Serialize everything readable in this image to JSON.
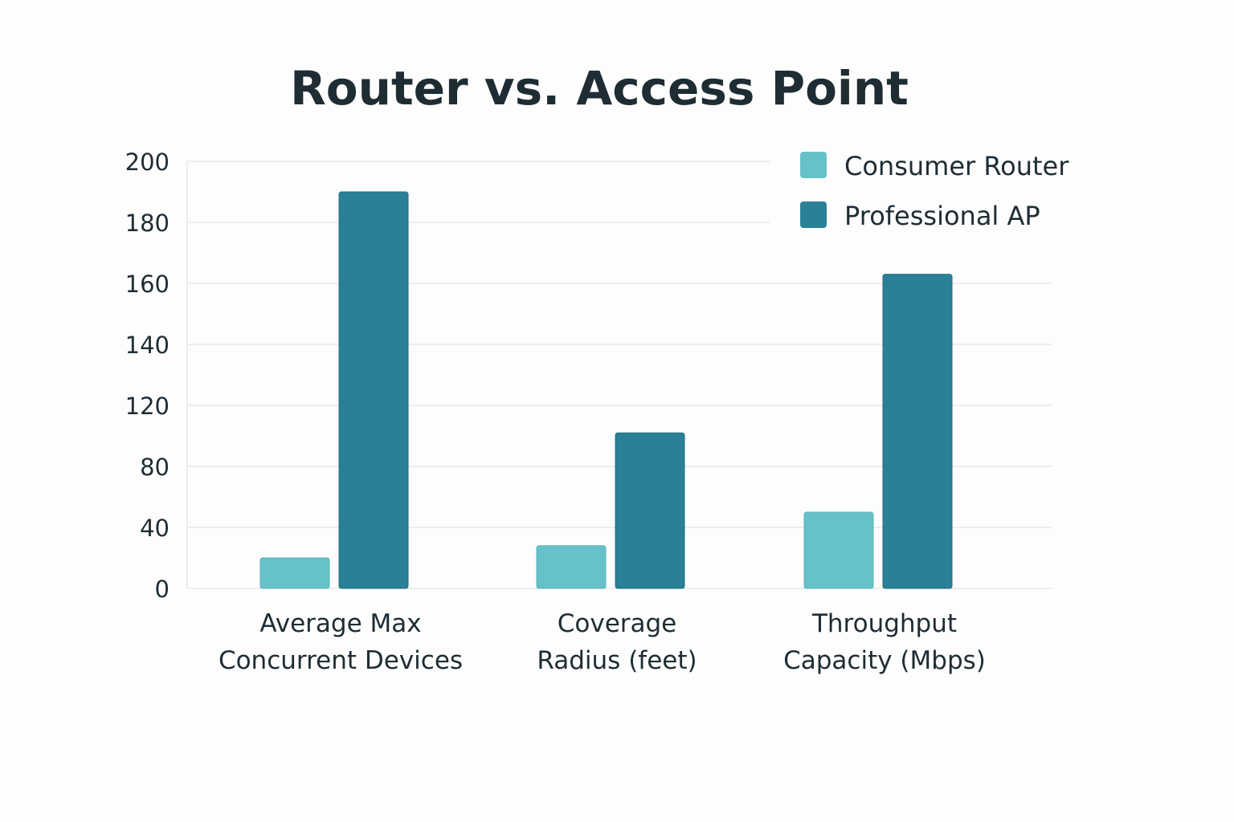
{
  "chart_data": {
    "type": "bar",
    "title": "Router vs. Access Point",
    "xlabel": "",
    "ylabel": "",
    "y_tick_labels": [
      0,
      40,
      80,
      120,
      140,
      160,
      180,
      200
    ],
    "ylim": [
      0,
      200
    ],
    "grid": true,
    "legend_placement": "top-right",
    "categories": [
      [
        "Average Max",
        "Concurrent Devices"
      ],
      [
        "Coverage",
        "Radius (feet)"
      ],
      [
        "Throughput",
        "Capacity (Mbps)"
      ]
    ],
    "series": [
      {
        "name": "Consumer Router",
        "color": "#67c1c9",
        "values": [
          20,
          28,
          50
        ]
      },
      {
        "name": "Professional AP",
        "color": "#2a8196",
        "values": [
          190,
          102,
          163
        ]
      }
    ]
  }
}
